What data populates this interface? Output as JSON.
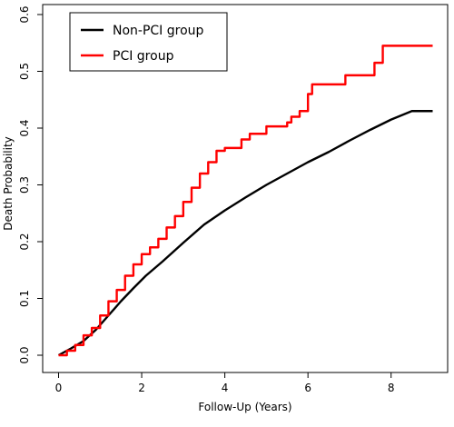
{
  "chart_data": {
    "type": "line",
    "xlabel": "Follow-Up (Years)",
    "ylabel": "Death Probability",
    "xlim": [
      0,
      9
    ],
    "ylim": [
      0,
      0.6
    ],
    "x_ticks": [
      "0",
      "2",
      "4",
      "6",
      "8"
    ],
    "y_ticks": [
      "0.0",
      "0.1",
      "0.2",
      "0.3",
      "0.4",
      "0.5",
      "0.6"
    ],
    "grid": false,
    "legend_position": "top-left",
    "series": [
      {
        "name": "Non-PCI group",
        "color": "#000000",
        "step": false,
        "x": [
          0,
          0.3,
          0.6,
          0.9,
          1.2,
          1.5,
          1.8,
          2.1,
          2.5,
          3.0,
          3.5,
          4.0,
          4.5,
          5.0,
          5.5,
          6.0,
          6.5,
          7.0,
          7.5,
          8.0,
          8.5,
          9.0
        ],
        "y": [
          0,
          0.012,
          0.025,
          0.045,
          0.07,
          0.095,
          0.118,
          0.14,
          0.165,
          0.198,
          0.23,
          0.255,
          0.278,
          0.3,
          0.32,
          0.34,
          0.358,
          0.378,
          0.397,
          0.415,
          0.43,
          0.43
        ]
      },
      {
        "name": "PCI group",
        "color": "#ff0000",
        "step": true,
        "x": [
          0,
          0.2,
          0.4,
          0.6,
          0.8,
          1.0,
          1.2,
          1.4,
          1.6,
          1.8,
          2.0,
          2.2,
          2.4,
          2.6,
          2.8,
          3.0,
          3.2,
          3.4,
          3.6,
          3.8,
          4.0,
          4.4,
          4.6,
          5.0,
          5.5,
          5.6,
          5.8,
          6.0,
          6.1,
          6.9,
          7.6,
          7.8,
          9.0
        ],
        "y": [
          0,
          0.008,
          0.018,
          0.035,
          0.048,
          0.07,
          0.095,
          0.115,
          0.14,
          0.16,
          0.178,
          0.19,
          0.205,
          0.225,
          0.245,
          0.27,
          0.295,
          0.32,
          0.34,
          0.36,
          0.365,
          0.38,
          0.39,
          0.403,
          0.41,
          0.42,
          0.43,
          0.46,
          0.477,
          0.493,
          0.515,
          0.545,
          0.545
        ]
      }
    ]
  }
}
